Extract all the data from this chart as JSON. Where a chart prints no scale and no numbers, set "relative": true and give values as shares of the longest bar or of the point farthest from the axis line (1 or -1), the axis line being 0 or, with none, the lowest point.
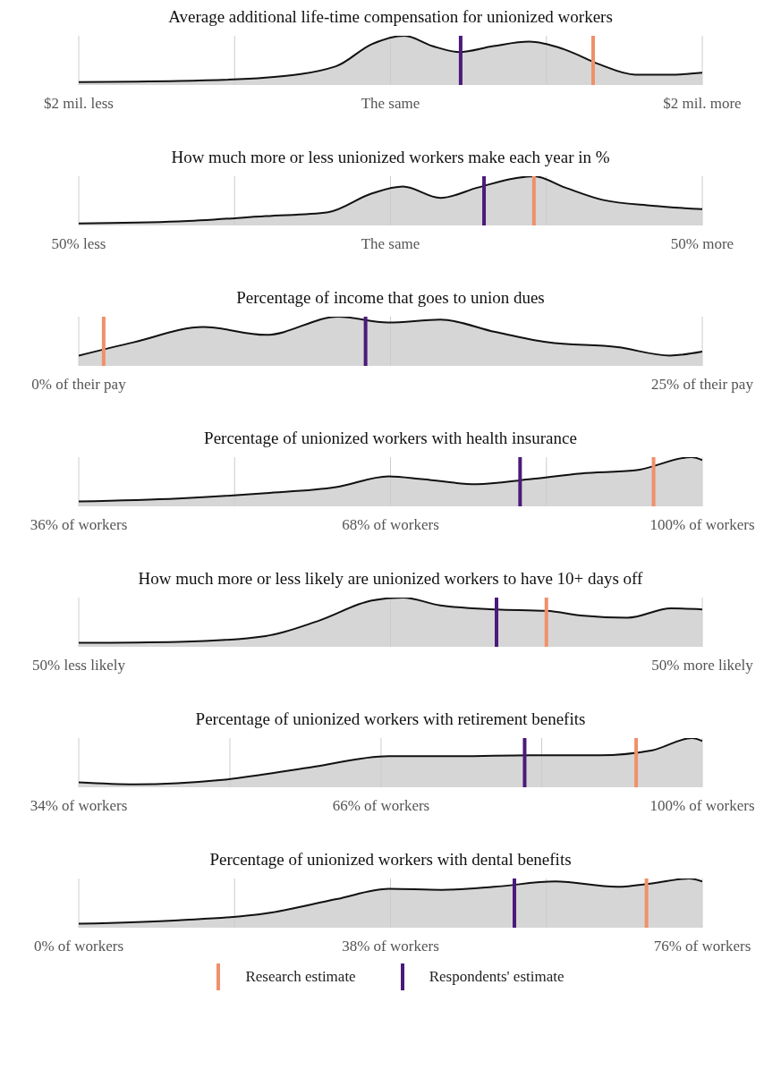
{
  "chart_data": [
    {
      "type": "area",
      "title": "Average additional life-time compensation for unionized workers",
      "relative": true,
      "color": "#cccccc",
      "grid": "x",
      "x": [
        -2,
        -1.36,
        -0.8,
        -0.35,
        -0.12,
        0.09,
        0.27,
        0.44,
        0.66,
        0.89,
        1.11,
        1.34,
        1.57,
        1.79,
        2
      ],
      "values": [
        0.06,
        0.08,
        0.15,
        0.38,
        0.83,
        1,
        0.79,
        0.67,
        0.79,
        0.88,
        0.73,
        0.42,
        0.21,
        0.21,
        0.25
      ],
      "xlim": [
        -2,
        2
      ],
      "xticks": [
        {
          "value": -2,
          "label": "$2 mil. less"
        },
        {
          "value": -1,
          "label": null
        },
        {
          "value": 0,
          "label": "The same"
        },
        {
          "value": 1,
          "label": null
        },
        {
          "value": 2,
          "label": "$2 mil. more"
        }
      ],
      "ref_lines": [
        {
          "axis": "x",
          "value": 1.3,
          "color": "#f0906a"
        },
        {
          "axis": "x",
          "value": 0.45,
          "color": "#4b1a7a"
        }
      ]
    },
    {
      "type": "area",
      "title": "How much more or less unionized workers make each year in %",
      "relative": true,
      "color": "#cccccc",
      "grid": "x",
      "x": [
        -50,
        -34,
        -20,
        -10,
        -3,
        2,
        8,
        14,
        20,
        23,
        28,
        34,
        42,
        50
      ],
      "values": [
        0.04,
        0.08,
        0.19,
        0.27,
        0.65,
        0.79,
        0.56,
        0.77,
        0.96,
        1,
        0.77,
        0.52,
        0.4,
        0.33
      ],
      "xlim": [
        -50,
        50
      ],
      "xticks": [
        {
          "value": -50,
          "label": "50% less"
        },
        {
          "value": -25,
          "label": null
        },
        {
          "value": 0,
          "label": "The same"
        },
        {
          "value": 25,
          "label": null
        },
        {
          "value": 50,
          "label": "50% more"
        }
      ],
      "ref_lines": [
        {
          "axis": "x",
          "value": 23,
          "color": "#f0906a"
        },
        {
          "axis": "x",
          "value": 15,
          "color": "#4b1a7a"
        }
      ]
    },
    {
      "type": "area",
      "title": "Percentage of income that goes to union dues",
      "relative": true,
      "color": "#cccccc",
      "grid": "x",
      "x": [
        0,
        2.2,
        5,
        7.5,
        10.4,
        12.4,
        14.5,
        16.7,
        18.8,
        21.6,
        23.7,
        25
      ],
      "values": [
        0.21,
        0.48,
        0.79,
        0.63,
        1,
        0.88,
        0.94,
        0.69,
        0.48,
        0.38,
        0.21,
        0.29
      ],
      "xlim": [
        0,
        25
      ],
      "xticks": [
        {
          "value": 0,
          "label": "0% of their pay"
        },
        {
          "value": 12.5,
          "label": null
        },
        {
          "value": 25,
          "label": "25% of their pay"
        }
      ],
      "ref_lines": [
        {
          "axis": "x",
          "value": 1,
          "color": "#f0906a"
        },
        {
          "axis": "x",
          "value": 11.5,
          "color": "#4b1a7a"
        }
      ]
    },
    {
      "type": "area",
      "title": "Percentage of unionized workers with health insurance",
      "relative": true,
      "color": "#cccccc",
      "grid": "x",
      "x": [
        36,
        46.2,
        55.2,
        62.4,
        67.8,
        71.4,
        76.8,
        82.2,
        87.6,
        93.1,
        98.9,
        100
      ],
      "values": [
        0.1,
        0.16,
        0.27,
        0.39,
        0.61,
        0.55,
        0.45,
        0.55,
        0.67,
        0.73,
        1,
        0.94
      ],
      "xlim": [
        36,
        100
      ],
      "xticks": [
        {
          "value": 36,
          "label": "36% of workers"
        },
        {
          "value": 52,
          "label": null
        },
        {
          "value": 68,
          "label": "68% of workers"
        },
        {
          "value": 84,
          "label": null
        },
        {
          "value": 100,
          "label": "100% of workers"
        }
      ],
      "ref_lines": [
        {
          "axis": "x",
          "value": 95,
          "color": "#f0906a"
        },
        {
          "axis": "x",
          "value": 81.3,
          "color": "#4b1a7a"
        }
      ]
    },
    {
      "type": "area",
      "title": "How much more or less likely are unionized workers to have 10+ days off",
      "relative": true,
      "color": "#cccccc",
      "grid": "x",
      "x": [
        -50,
        -34,
        -20,
        -11.5,
        -3,
        2,
        8,
        17,
        25,
        31,
        38,
        45,
        50
      ],
      "values": [
        0.08,
        0.1,
        0.22,
        0.53,
        0.94,
        1,
        0.84,
        0.76,
        0.73,
        0.63,
        0.59,
        0.78,
        0.76
      ],
      "xlim": [
        -50,
        50
      ],
      "xticks": [
        {
          "value": -50,
          "label": "50% less likely"
        },
        {
          "value": 0,
          "label": null
        },
        {
          "value": 50,
          "label": "50% more likely"
        }
      ],
      "ref_lines": [
        {
          "axis": "x",
          "value": 25,
          "color": "#f0906a"
        },
        {
          "axis": "x",
          "value": 17,
          "color": "#4b1a7a"
        }
      ]
    },
    {
      "type": "area",
      "title": "Percentage of unionized workers with retirement benefits",
      "relative": true,
      "color": "#cccccc",
      "grid": "x",
      "x": [
        34,
        39.9,
        49.2,
        58.4,
        66.8,
        74.2,
        81.7,
        89.1,
        94.7,
        98.9,
        100
      ],
      "values": [
        0.1,
        0.06,
        0.15,
        0.4,
        0.63,
        0.63,
        0.65,
        0.65,
        0.75,
        1,
        0.94
      ],
      "xlim": [
        34,
        100
      ],
      "xticks": [
        {
          "value": 34,
          "label": "34% of workers"
        },
        {
          "value": 50,
          "label": null
        },
        {
          "value": 66,
          "label": "66% of workers"
        },
        {
          "value": 83,
          "label": null
        },
        {
          "value": 100,
          "label": "100% of workers"
        }
      ],
      "ref_lines": [
        {
          "axis": "x",
          "value": 93,
          "color": "#f0906a"
        },
        {
          "axis": "x",
          "value": 81.2,
          "color": "#4b1a7a"
        }
      ]
    },
    {
      "type": "area",
      "title": "Percentage of unionized workers with dental benefits",
      "relative": true,
      "color": "#cccccc",
      "grid": "x",
      "legend": "bottom",
      "x": [
        0,
        12.1,
        22.8,
        31.4,
        37.8,
        44.2,
        50.6,
        58.1,
        65.6,
        69.9,
        74.4,
        76
      ],
      "values": [
        0.08,
        0.15,
        0.29,
        0.58,
        0.79,
        0.77,
        0.83,
        0.94,
        0.83,
        0.9,
        1,
        0.94
      ],
      "xlim": [
        0,
        76
      ],
      "xticks": [
        {
          "value": 0,
          "label": "0% of workers"
        },
        {
          "value": 19,
          "label": null
        },
        {
          "value": 38,
          "label": "38% of workers"
        },
        {
          "value": 57,
          "label": null
        },
        {
          "value": 76,
          "label": "76% of workers"
        }
      ],
      "ref_lines": [
        {
          "axis": "x",
          "value": 69.2,
          "color": "#f0906a",
          "label": "Research estimate"
        },
        {
          "axis": "x",
          "value": 53.1,
          "color": "#4b1a7a",
          "label": "Respondents' estimate"
        }
      ]
    }
  ]
}
